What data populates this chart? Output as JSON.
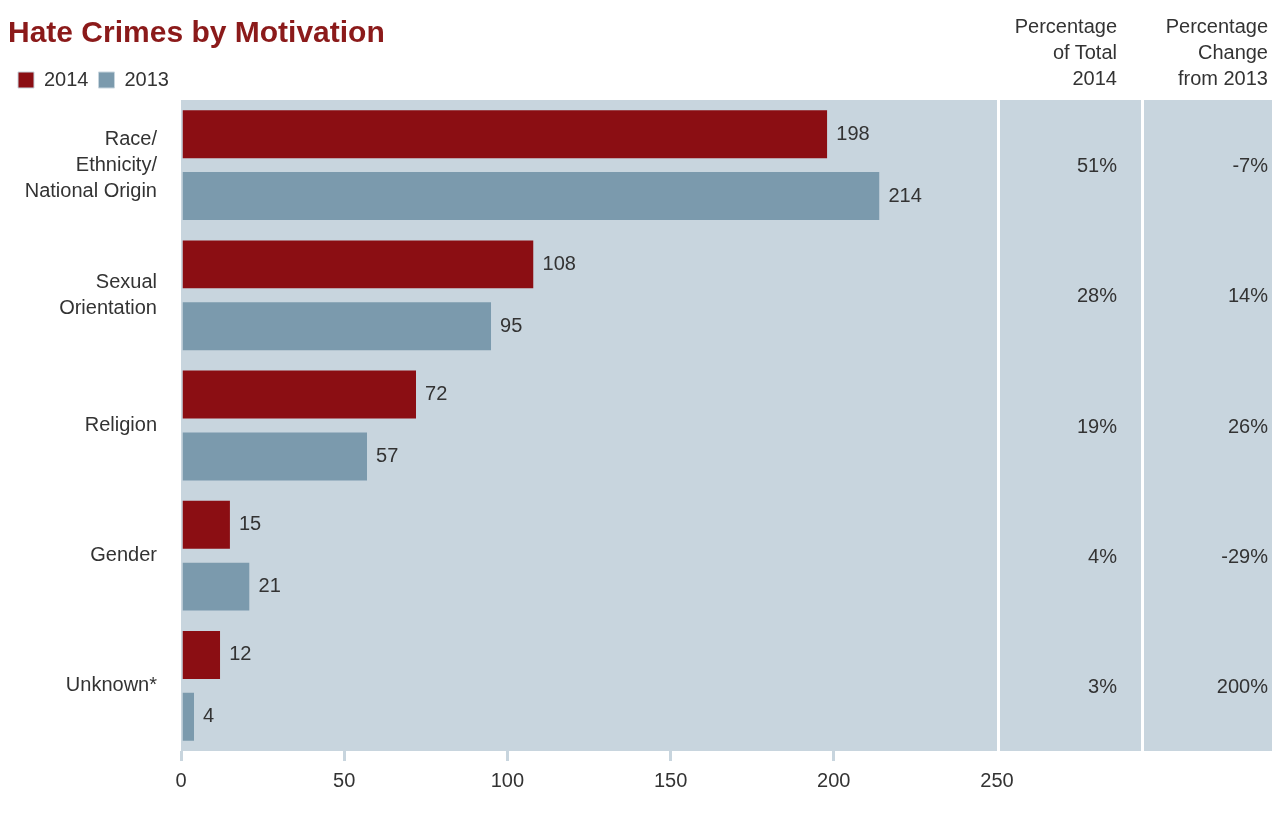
{
  "chart_data": {
    "type": "bar",
    "orientation": "horizontal",
    "title": "Hate Crimes by Motivation",
    "categories": [
      "Race/ Ethnicity/ National Origin",
      "Sexual Orientation",
      "Religion",
      "Gender",
      "Unknown*"
    ],
    "series": [
      {
        "name": "2014",
        "color": "#8b0e13",
        "values": [
          198,
          108,
          72,
          15,
          12
        ]
      },
      {
        "name": "2013",
        "color": "#7b9aad",
        "values": [
          214,
          95,
          57,
          21,
          4
        ]
      }
    ],
    "xlim": [
      0,
      250
    ],
    "xticks": [
      0,
      50,
      100,
      150,
      200,
      250
    ],
    "data_labels": true,
    "legend": "top left",
    "grid": false,
    "annotations": [
      "Percentage of Total 2014",
      "Percentage Change from 2013",
      "51%",
      "-7%",
      "28%",
      "14%",
      "19%",
      "26%",
      "4%",
      "-29%",
      "3%",
      "200%"
    ]
  }
}
